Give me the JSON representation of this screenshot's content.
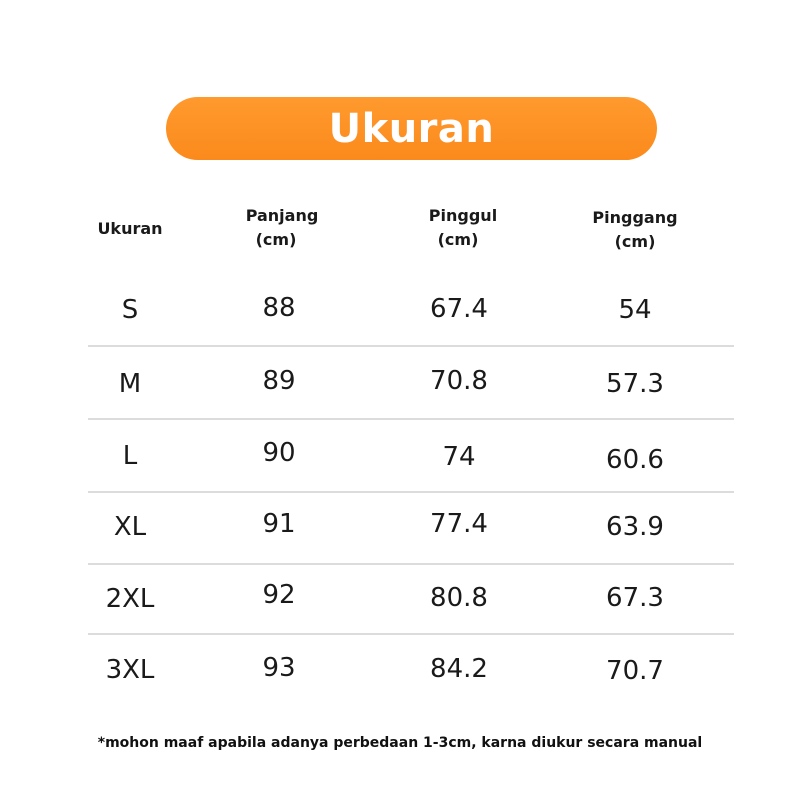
{
  "title": "Ukuran",
  "table": {
    "headers": [
      {
        "line1": "Ukuran",
        "line2": ""
      },
      {
        "line1": "Panjang",
        "line2": "(cm)"
      },
      {
        "line1": "Pinggul",
        "line2": "(cm)"
      },
      {
        "line1": "Pinggang",
        "line2": "(cm)"
      }
    ],
    "rows": [
      {
        "size": "S",
        "panjang": "88",
        "pinggul": "67.4",
        "pinggang": "54"
      },
      {
        "size": "M",
        "panjang": "89",
        "pinggul": "70.8",
        "pinggang": "57.3"
      },
      {
        "size": "L",
        "panjang": "90",
        "pinggul": "74",
        "pinggang": "60.6"
      },
      {
        "size": "XL",
        "panjang": "91",
        "pinggul": "77.4",
        "pinggang": "63.9"
      },
      {
        "size": "2XL",
        "panjang": "92",
        "pinggul": "80.8",
        "pinggang": "67.3"
      },
      {
        "size": "3XL",
        "panjang": "93",
        "pinggul": "84.2",
        "pinggang": "70.7"
      }
    ]
  },
  "footnote": "*mohon maaf apabila adanya perbedaan 1-3cm, karna diukur secara manual",
  "colors": {
    "accent": "#fb8a1c",
    "divider": "#dcdcdc",
    "text": "#1a1a1a"
  }
}
